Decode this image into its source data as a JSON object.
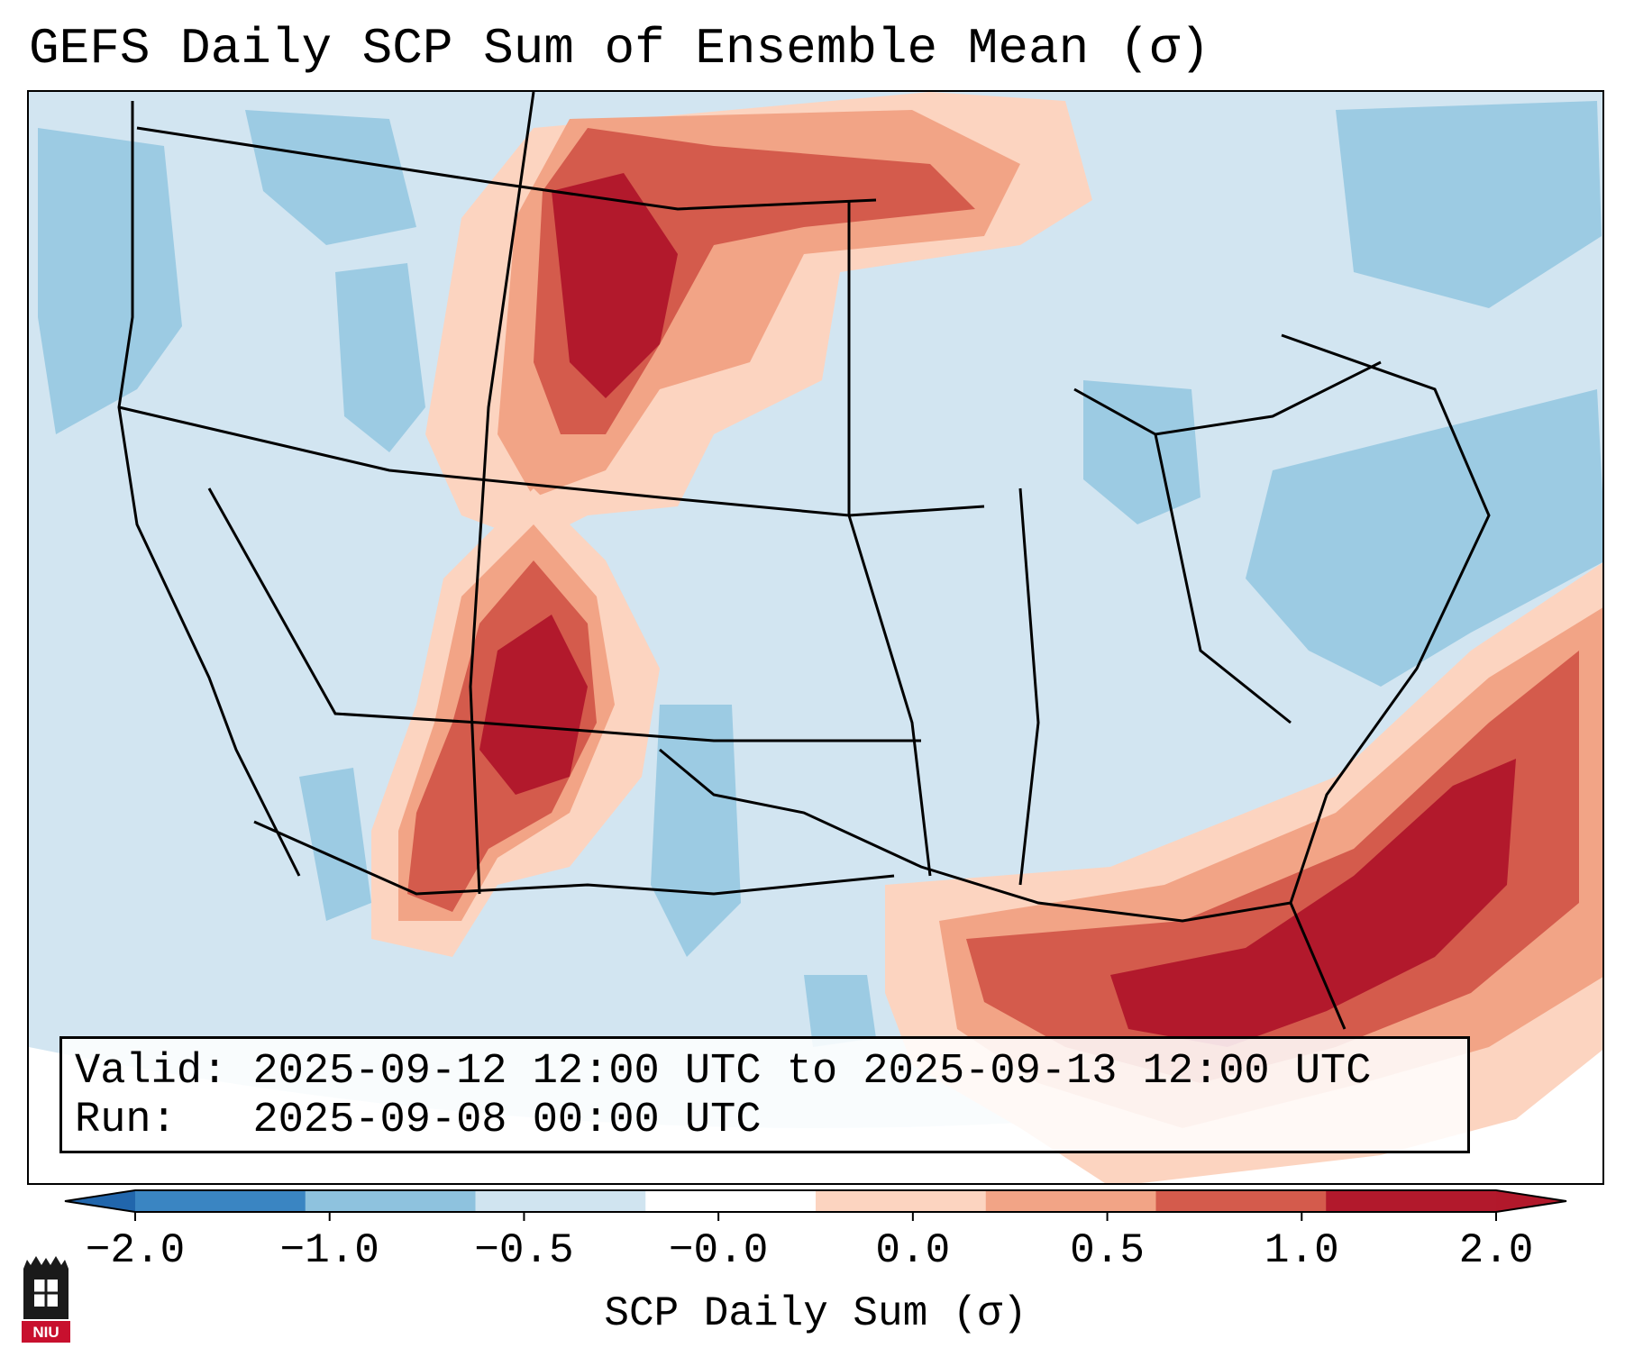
{
  "title": "GEFS Daily SCP Sum of Ensemble Mean (σ)",
  "info": {
    "valid_label": "Valid:",
    "valid_value": "2025-09-12 12:00 UTC to 2025-09-13 12:00 UTC",
    "run_label": "Run:",
    "run_value": "2025-09-08 00:00 UTC"
  },
  "colorbar": {
    "label": "SCP Daily Sum (σ)",
    "ticks": [
      "−2.0",
      "−1.0",
      "−0.5",
      "−0.0",
      "0.0",
      "0.5",
      "1.0",
      "2.0"
    ],
    "bin_colors": [
      "#3a85c2",
      "#8ec2de",
      "#d0e4f0",
      "#ffffff",
      "#fcd4c0",
      "#f2a486",
      "#d45b4c",
      "#b2192c"
    ],
    "under_color": "#2166ac",
    "over_color": "#b2182b"
  },
  "map": {
    "background_color": "#d2e5f1",
    "outline_color": "#000000",
    "regions": [
      "positive anomaly band over the northern Rockies and northern Plains",
      "positive anomaly band over the southern Rockies, Arizona and New Mexico",
      "strong positive anomaly over the Gulf of Mexico, Florida and western Atlantic",
      "negative anomaly patches over the Pacific Northwest, New England and mid-Atlantic coast"
    ]
  },
  "logo": {
    "text": "NIU"
  }
}
